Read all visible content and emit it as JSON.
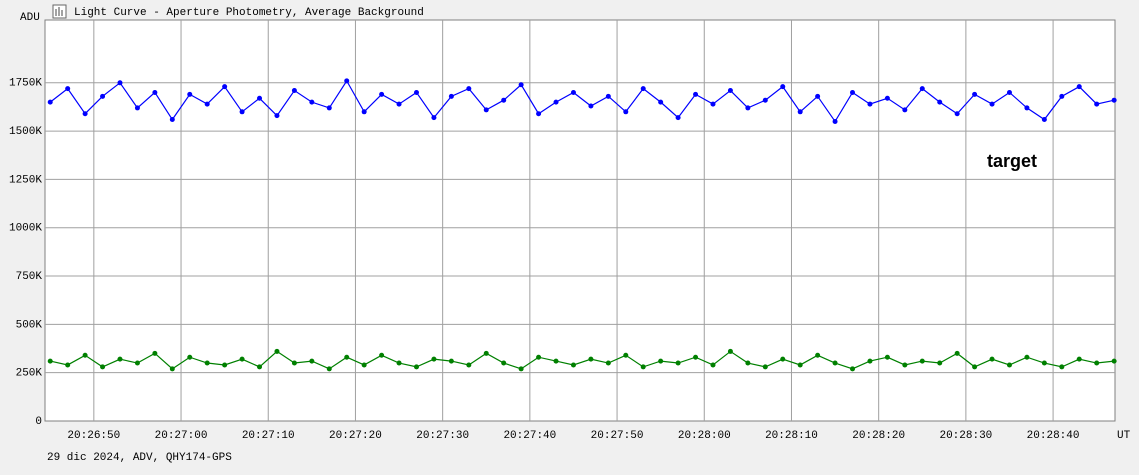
{
  "chart_data": {
    "type": "line",
    "title": "Light Curve - Aperture Photometry, Average Background",
    "y_label": "ADU",
    "x_label": "UT",
    "footer": "29 dic 2024, ADV, QHY174-GPS",
    "x": [
      "20:26:45",
      "20:26:47",
      "20:26:49",
      "20:26:51",
      "20:26:53",
      "20:26:55",
      "20:26:57",
      "20:26:59",
      "20:27:01",
      "20:27:03",
      "20:27:05",
      "20:27:07",
      "20:27:09",
      "20:27:11",
      "20:27:13",
      "20:27:15",
      "20:27:17",
      "20:27:19",
      "20:27:21",
      "20:27:23",
      "20:27:25",
      "20:27:27",
      "20:27:29",
      "20:27:31",
      "20:27:33",
      "20:27:35",
      "20:27:37",
      "20:27:39",
      "20:27:41",
      "20:27:43",
      "20:27:45",
      "20:27:47",
      "20:27:49",
      "20:27:51",
      "20:27:53",
      "20:27:55",
      "20:27:57",
      "20:27:59",
      "20:28:01",
      "20:28:03",
      "20:28:05",
      "20:28:07",
      "20:28:09",
      "20:28:11",
      "20:28:13",
      "20:28:15",
      "20:28:17",
      "20:28:19",
      "20:28:21",
      "20:28:23",
      "20:28:25",
      "20:28:27",
      "20:28:29",
      "20:28:31",
      "20:28:33",
      "20:28:35",
      "20:28:37",
      "20:28:39",
      "20:28:41",
      "20:28:43",
      "20:28:45",
      "20:28:47"
    ],
    "series": [
      {
        "name": "target",
        "color": "#0000ff",
        "values": [
          1650000,
          1720000,
          1590000,
          1680000,
          1750000,
          1620000,
          1700000,
          1560000,
          1690000,
          1640000,
          1730000,
          1600000,
          1670000,
          1580000,
          1710000,
          1650000,
          1620000,
          1760000,
          1600000,
          1690000,
          1640000,
          1700000,
          1570000,
          1680000,
          1720000,
          1610000,
          1660000,
          1740000,
          1590000,
          1650000,
          1700000,
          1630000,
          1680000,
          1600000,
          1720000,
          1650000,
          1570000,
          1690000,
          1640000,
          1710000,
          1620000,
          1660000,
          1730000,
          1600000,
          1680000,
          1550000,
          1700000,
          1640000,
          1670000,
          1610000,
          1720000,
          1650000,
          1590000,
          1690000,
          1640000,
          1700000,
          1620000,
          1560000,
          1680000,
          1730000,
          1640000,
          1660000
        ]
      },
      {
        "color": "#008000",
        "values": [
          310000,
          290000,
          340000,
          280000,
          320000,
          300000,
          350000,
          270000,
          330000,
          300000,
          290000,
          320000,
          280000,
          360000,
          300000,
          310000,
          270000,
          330000,
          290000,
          340000,
          300000,
          280000,
          320000,
          310000,
          290000,
          350000,
          300000,
          270000,
          330000,
          310000,
          290000,
          320000,
          300000,
          340000,
          280000,
          310000,
          300000,
          330000,
          290000,
          360000,
          300000,
          280000,
          320000,
          290000,
          340000,
          300000,
          270000,
          310000,
          330000,
          290000,
          310000,
          300000,
          350000,
          280000,
          320000,
          290000,
          330000,
          300000,
          280000,
          320000,
          300000,
          310000
        ]
      }
    ],
    "xlim": [
      "20:26:44.4",
      "20:28:47.1"
    ],
    "xticks": [
      "20:26:50",
      "20:27:00",
      "20:27:10",
      "20:27:20",
      "20:27:30",
      "20:27:40",
      "20:27:50",
      "20:28:00",
      "20:28:10",
      "20:28:20",
      "20:28:30",
      "20:28:40"
    ],
    "ylim": [
      0,
      2075000
    ],
    "yticks": [
      0,
      {
        "value": 250000,
        "label": "250K"
      },
      {
        "value": 500000,
        "label": "500K"
      },
      {
        "value": 750000,
        "label": "750K"
      },
      {
        "value": 1000000,
        "label": "1000K"
      },
      {
        "value": 1250000,
        "label": "1250K"
      },
      {
        "value": 1500000,
        "label": "1500K"
      },
      {
        "value": 1750000,
        "label": "1750K"
      }
    ],
    "grid": true
  }
}
